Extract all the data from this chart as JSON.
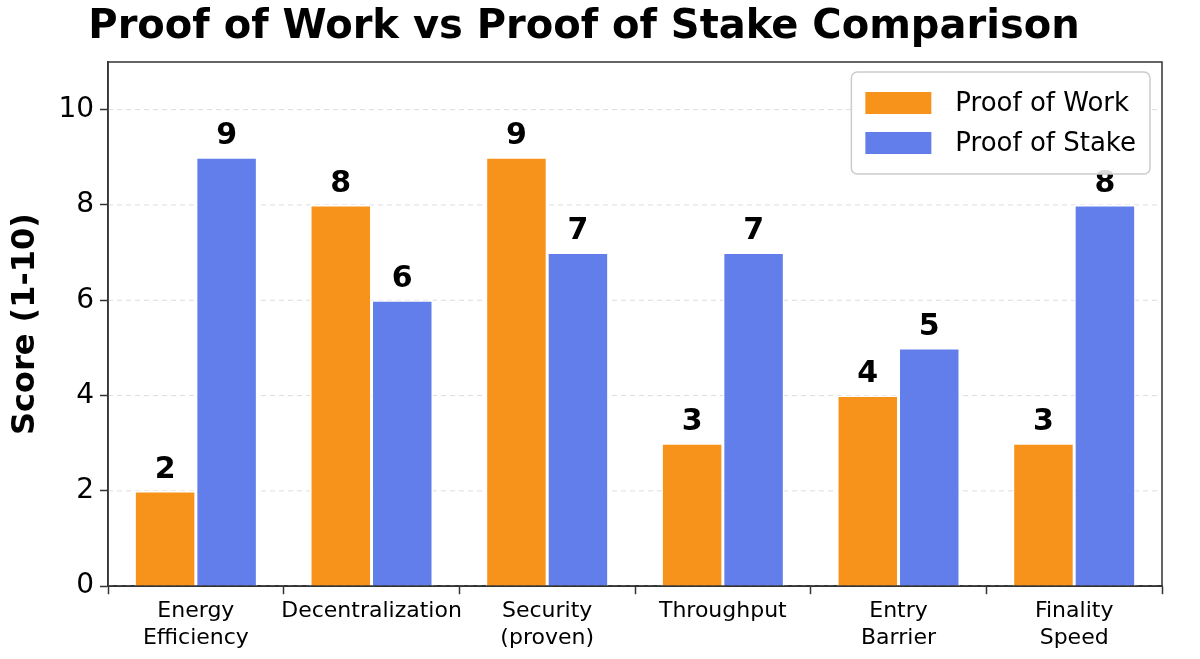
{
  "chart_data": {
    "type": "bar",
    "title": "Proof of Work vs Proof of Stake Comparison",
    "ylabel": "Score (1-10)",
    "categories": [
      "Energy\nEfficiency",
      "Decentralization",
      "Security\n(proven)",
      "Throughput",
      "Entry\nBarrier",
      "Finality\nSpeed"
    ],
    "series": [
      {
        "name": "Proof of Work",
        "color": "#f7931a",
        "values": [
          2,
          8,
          9,
          3,
          4,
          3
        ]
      },
      {
        "name": "Proof of Stake",
        "color": "#627eea",
        "values": [
          9,
          6,
          7,
          7,
          5,
          8
        ]
      }
    ],
    "ylim": [
      0,
      11
    ],
    "yticks": [
      0,
      2,
      4,
      6,
      8,
      10
    ],
    "grid": "y",
    "legend": "top right",
    "data_labels": true
  }
}
